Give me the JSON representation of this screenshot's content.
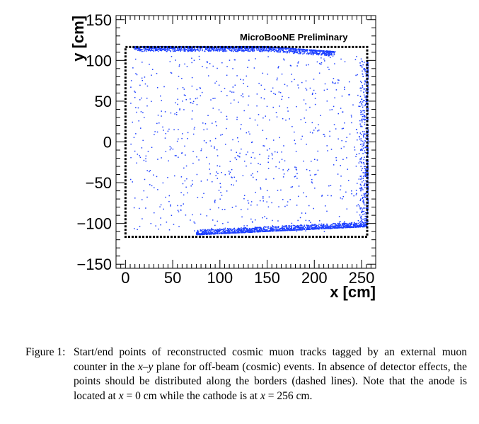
{
  "chart_data": {
    "type": "scatter",
    "title": "",
    "xlabel": "x [cm]",
    "ylabel": "y [cm]",
    "xlim": [
      -10,
      265
    ],
    "ylim": [
      -155,
      155
    ],
    "xticks": [
      0,
      50,
      100,
      150,
      200,
      250
    ],
    "yticks": [
      -150,
      -100,
      -50,
      0,
      50,
      100,
      150
    ],
    "xtick_labels": [
      "0",
      "50",
      "100",
      "150",
      "200",
      "250"
    ],
    "ytick_labels": [
      "−150",
      "−100",
      "−50",
      "0",
      "50",
      "100",
      "150"
    ],
    "grid": false,
    "annotation": "MicroBooNE Preliminary",
    "marker_color": "#1c3fff",
    "border_box": {
      "x": [
        0,
        256
      ],
      "y": [
        -116.5,
        116.5
      ],
      "style": "dashed"
    },
    "point_groups": [
      {
        "region": "top edge",
        "x_range": [
          8,
          222
        ],
        "y_range": [
          103,
          117
        ]
      },
      {
        "region": "bottom edge",
        "x_range": [
          75,
          256
        ],
        "y_range": [
          -114,
          -97
        ]
      },
      {
        "region": "cathode side",
        "x_range": [
          248,
          257
        ],
        "y_range": [
          -100,
          100
        ]
      },
      {
        "region": "interior",
        "x_range": [
          5,
          250
        ],
        "y_range": [
          -110,
          105
        ]
      }
    ]
  },
  "caption": {
    "label": "Figure 1:",
    "text_1": "Start/end points of reconstructed cosmic muon tracks tagged by an external muon counter in the ",
    "math_1": "x–y",
    "text_2": " plane for off-beam (cosmic) events. In absence of detector effects, the points should be distributed along the borders (dashed lines). Note that the anode is located at ",
    "math_2": "x",
    "text_3": " = 0 cm while the cathode is at ",
    "math_3": "x",
    "text_4": " = 256 cm."
  }
}
